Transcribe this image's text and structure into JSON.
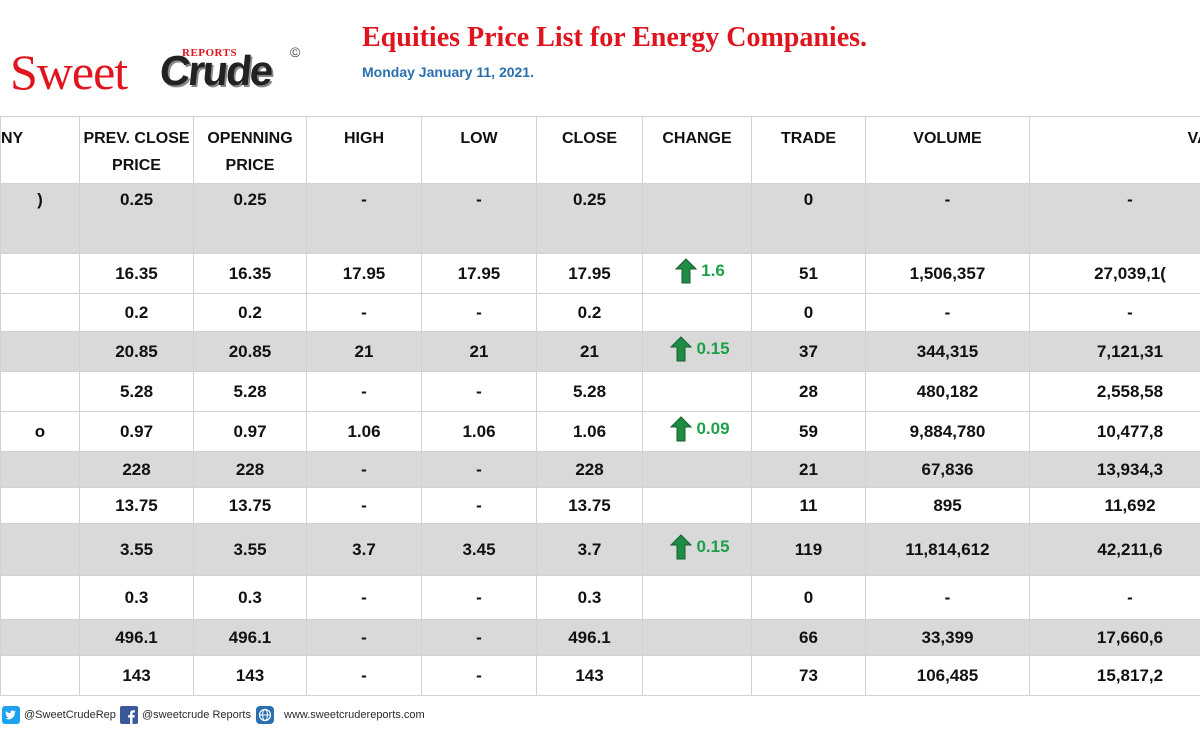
{
  "logo": {
    "sweet": "Sweet",
    "crude": "Crude",
    "reports": "REPORTS",
    "copyright": "©"
  },
  "header": {
    "title": "Equities Price List for Energy Companies.",
    "date": "Monday January 11, 2021."
  },
  "table": {
    "columns": [
      "NY",
      "PREV. CLOSE PRICE",
      "OPENNING PRICE",
      "HIGH",
      "LOW",
      "CLOSE",
      "CHANGE",
      "TRADE",
      "VOLUME",
      "VALU"
    ],
    "rows": [
      {
        "company": ")",
        "prev_close": "0.25",
        "open": "0.25",
        "high": "-",
        "low": "-",
        "close": "0.25",
        "change": "",
        "trade": "0",
        "volume": "-",
        "value": "-"
      },
      {
        "company": "",
        "prev_close": "16.35",
        "open": "16.35",
        "high": "17.95",
        "low": "17.95",
        "close": "17.95",
        "change": "1.6",
        "trade": "51",
        "volume": "1,506,357",
        "value": "27,039,1("
      },
      {
        "company": "",
        "prev_close": "0.2",
        "open": "0.2",
        "high": "-",
        "low": "-",
        "close": "0.2",
        "change": "",
        "trade": "0",
        "volume": "-",
        "value": "-"
      },
      {
        "company": "",
        "prev_close": "20.85",
        "open": "20.85",
        "high": "21",
        "low": "21",
        "close": "21",
        "change": "0.15",
        "trade": "37",
        "volume": "344,315",
        "value": "7,121,31"
      },
      {
        "company": "",
        "prev_close": "5.28",
        "open": "5.28",
        "high": "-",
        "low": "-",
        "close": "5.28",
        "change": "",
        "trade": "28",
        "volume": "480,182",
        "value": "2,558,58"
      },
      {
        "company": "o",
        "prev_close": "0.97",
        "open": "0.97",
        "high": "1.06",
        "low": "1.06",
        "close": "1.06",
        "change": "0.09",
        "trade": "59",
        "volume": "9,884,780",
        "value": "10,477,8"
      },
      {
        "company": "",
        "prev_close": "228",
        "open": "228",
        "high": "-",
        "low": "-",
        "close": "228",
        "change": "",
        "trade": "21",
        "volume": "67,836",
        "value": "13,934,3"
      },
      {
        "company": "",
        "prev_close": "13.75",
        "open": "13.75",
        "high": "-",
        "low": "-",
        "close": "13.75",
        "change": "",
        "trade": "11",
        "volume": "895",
        "value": "11,692"
      },
      {
        "company": "",
        "prev_close": "3.55",
        "open": "3.55",
        "high": "3.7",
        "low": "3.45",
        "close": "3.7",
        "change": "0.15",
        "trade": "119",
        "volume": "11,814,612",
        "value": "42,211,6"
      },
      {
        "company": "",
        "prev_close": "0.3",
        "open": "0.3",
        "high": "-",
        "low": "-",
        "close": "0.3",
        "change": "",
        "trade": "0",
        "volume": "-",
        "value": "-"
      },
      {
        "company": "",
        "prev_close": "496.1",
        "open": "496.1",
        "high": "-",
        "low": "-",
        "close": "496.1",
        "change": "",
        "trade": "66",
        "volume": "33,399",
        "value": "17,660,6"
      },
      {
        "company": "",
        "prev_close": "143",
        "open": "143",
        "high": "-",
        "low": "-",
        "close": "143",
        "change": "",
        "trade": "73",
        "volume": "106,485",
        "value": "15,817,2"
      }
    ]
  },
  "footer": {
    "twitter": "@SweetCrudeRep",
    "facebook": "@sweetcrude Reports",
    "website": "www.sweetcrudereports.com"
  },
  "colors": {
    "title_red": "#e0141e",
    "date_blue": "#2a6fb0",
    "change_green": "#1ca04b",
    "row_shade": "#d9d9d9"
  }
}
